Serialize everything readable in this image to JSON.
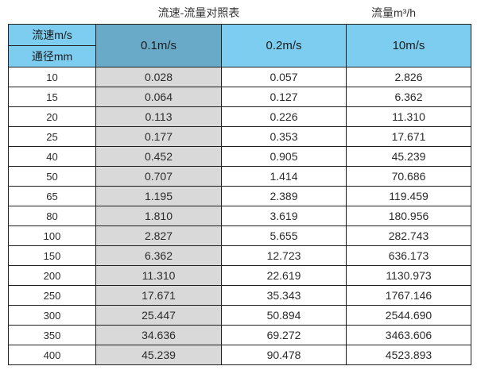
{
  "titles": {
    "main": "流速-流量对照表",
    "unit": "流量m³/h"
  },
  "table": {
    "corner": {
      "top": "流速m/s",
      "bottom": "通径mm"
    },
    "velocity_headers": [
      "0.1m/s",
      "0.2m/s",
      "10m/s"
    ],
    "rows": [
      {
        "diameter": "10",
        "values": [
          "0.028",
          "0.057",
          "2.826"
        ]
      },
      {
        "diameter": "15",
        "values": [
          "0.064",
          "0.127",
          "6.362"
        ]
      },
      {
        "diameter": "20",
        "values": [
          "0.113",
          "0.226",
          "11.310"
        ]
      },
      {
        "diameter": "25",
        "values": [
          "0.177",
          "0.353",
          "17.671"
        ]
      },
      {
        "diameter": "40",
        "values": [
          "0.452",
          "0.905",
          "45.239"
        ]
      },
      {
        "diameter": "50",
        "values": [
          "0.707",
          "1.414",
          "70.686"
        ]
      },
      {
        "diameter": "65",
        "values": [
          "1.195",
          "2.389",
          "119.459"
        ]
      },
      {
        "diameter": "80",
        "values": [
          "1.810",
          "3.619",
          "180.956"
        ]
      },
      {
        "diameter": "100",
        "values": [
          "2.827",
          "5.655",
          "282.743"
        ]
      },
      {
        "diameter": "150",
        "values": [
          "6.362",
          "12.723",
          "636.173"
        ]
      },
      {
        "diameter": "200",
        "values": [
          "11.310",
          "22.619",
          "1130.973"
        ]
      },
      {
        "diameter": "250",
        "values": [
          "17.671",
          "35.343",
          "1767.146"
        ]
      },
      {
        "diameter": "300",
        "values": [
          "25.447",
          "50.894",
          "2544.690"
        ]
      },
      {
        "diameter": "350",
        "values": [
          "34.636",
          "69.272",
          "3463.606"
        ]
      },
      {
        "diameter": "400",
        "values": [
          "45.239",
          "90.478",
          "4523.893"
        ]
      }
    ]
  },
  "colors": {
    "header_light_blue": "#7dcdf0",
    "header_dark_blue": "#69aac8",
    "shaded_column_grey": "#d9d9d9",
    "border_black": "#1f1f1f",
    "text_dark": "#2b2b2b"
  },
  "chart_data": {
    "type": "table",
    "title": "流速-流量对照表",
    "unit_label": "流量m³/h",
    "column_axis_label": "流速m/s",
    "row_axis_label": "通径mm",
    "columns": [
      "0.1m/s",
      "0.2m/s",
      "10m/s"
    ],
    "highlighted_column": "0.1m/s",
    "diameters_mm": [
      10,
      15,
      20,
      25,
      40,
      50,
      65,
      80,
      100,
      150,
      200,
      250,
      300,
      350,
      400
    ],
    "series": [
      {
        "name": "0.1m/s",
        "values": [
          0.028,
          0.064,
          0.113,
          0.177,
          0.452,
          0.707,
          1.195,
          1.81,
          2.827,
          6.362,
          11.31,
          17.671,
          25.447,
          34.636,
          45.239
        ]
      },
      {
        "name": "0.2m/s",
        "values": [
          0.057,
          0.127,
          0.226,
          0.353,
          0.905,
          1.414,
          2.389,
          3.619,
          5.655,
          12.723,
          22.619,
          35.343,
          50.894,
          69.272,
          90.478
        ]
      },
      {
        "name": "10m/s",
        "values": [
          2.826,
          6.362,
          11.31,
          17.671,
          45.239,
          70.686,
          119.459,
          180.956,
          282.743,
          636.173,
          1130.973,
          1767.146,
          2544.69,
          3463.606,
          4523.893
        ]
      }
    ]
  }
}
